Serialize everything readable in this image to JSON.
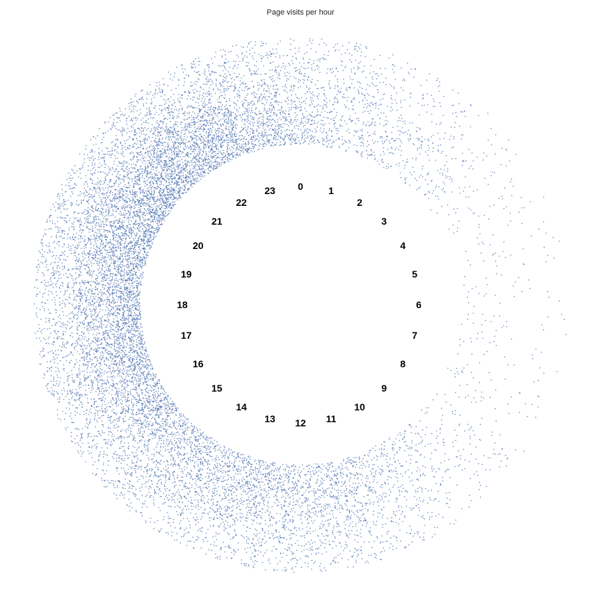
{
  "chart_data": {
    "type": "scatter",
    "subtype": "radial-clock",
    "title": "Page visits per hour",
    "hour_labels": [
      "0",
      "1",
      "2",
      "3",
      "4",
      "5",
      "6",
      "7",
      "8",
      "9",
      "10",
      "11",
      "12",
      "13",
      "14",
      "15",
      "16",
      "17",
      "18",
      "19",
      "20",
      "21",
      "22",
      "23"
    ],
    "series": [
      {
        "point_color": "#4c72b0",
        "relative_density_by_hour": [
          0.42,
          0.3,
          0.2,
          0.1,
          0.05,
          0.03,
          0.03,
          0.04,
          0.06,
          0.1,
          0.22,
          0.38,
          0.48,
          0.52,
          0.55,
          0.62,
          0.72,
          0.8,
          0.86,
          0.9,
          0.95,
          1.0,
          0.92,
          0.65
        ]
      }
    ],
    "direction": "clockwise",
    "zero_position": "top",
    "grid": false,
    "legend": "none"
  }
}
